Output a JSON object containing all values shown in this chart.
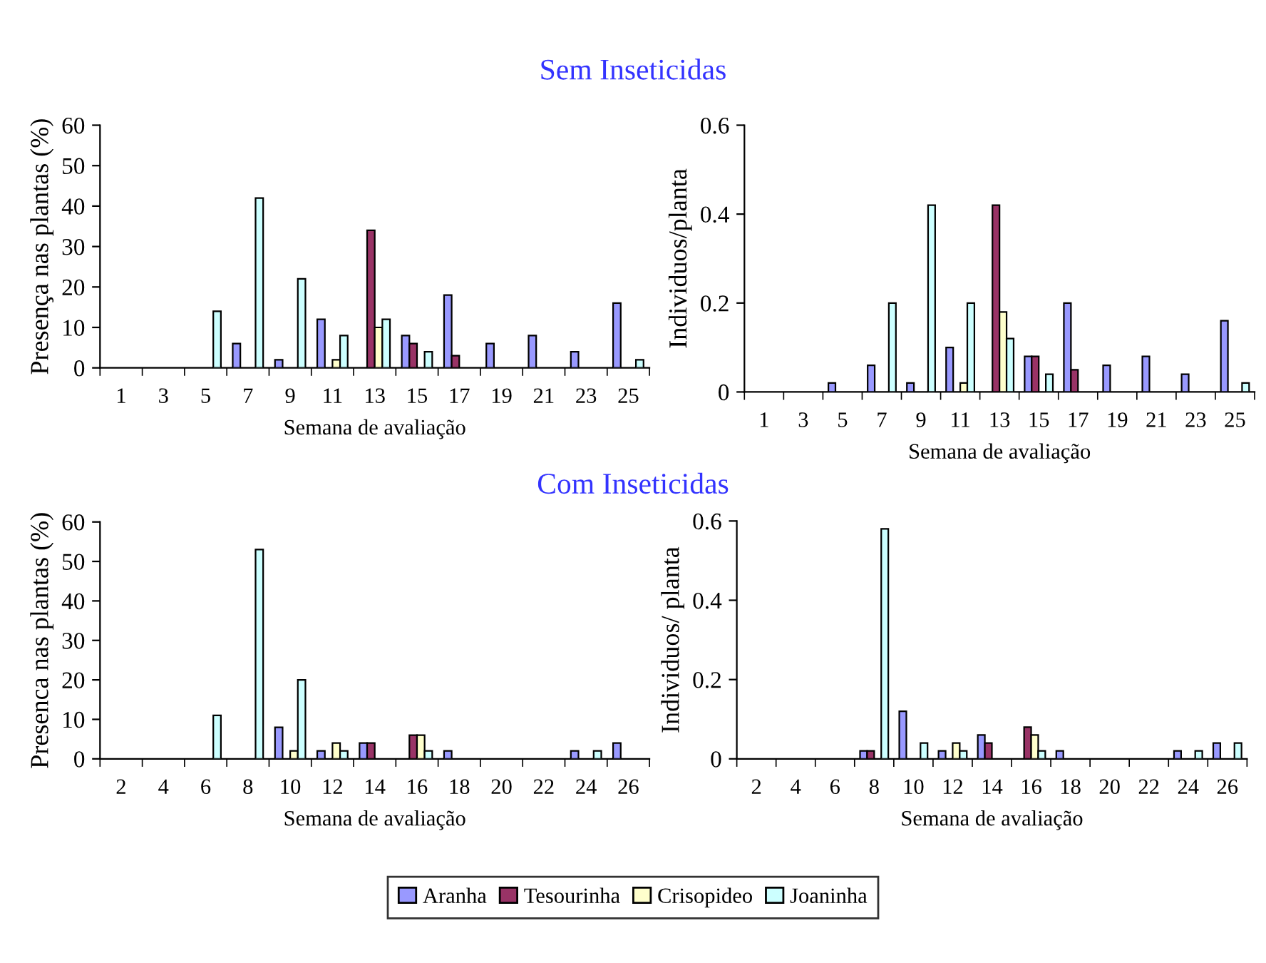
{
  "chart_data": [
    {
      "type": "bar",
      "title": "Sem Inseticidas",
      "xlabel": "Semana de avaliação",
      "ylabel": "Presença nas plantas (%)",
      "categories": [
        "1",
        "3",
        "5",
        "7",
        "9",
        "11",
        "13",
        "15",
        "17",
        "19",
        "21",
        "23",
        "25"
      ],
      "ylim": [
        0,
        60
      ],
      "yticks": [
        0,
        10,
        20,
        30,
        40,
        50,
        60
      ],
      "grid": false,
      "series": [
        {
          "color": "#9999ff",
          "values": [
            null,
            null,
            null,
            6,
            2,
            12,
            null,
            8,
            18,
            6,
            8,
            4,
            16
          ]
        },
        {
          "color": "#993366",
          "values": [
            null,
            null,
            null,
            null,
            null,
            null,
            34,
            6,
            3,
            null,
            null,
            null,
            null
          ]
        },
        {
          "color": "#ffffcc",
          "values": [
            null,
            null,
            null,
            null,
            null,
            2,
            10,
            null,
            null,
            null,
            null,
            null,
            null
          ]
        },
        {
          "color": "#ccffff",
          "values": [
            null,
            null,
            14,
            42,
            22,
            8,
            12,
            4,
            null,
            null,
            null,
            null,
            2
          ]
        }
      ]
    },
    {
      "type": "bar",
      "xlabel": "Semana de avaliação",
      "ylabel": "Individuos/planta",
      "categories": [
        "1",
        "3",
        "5",
        "7",
        "9",
        "11",
        "13",
        "15",
        "17",
        "19",
        "21",
        "23",
        "25"
      ],
      "ylim": [
        0,
        0.6
      ],
      "yticks": [
        {
          "value": 0,
          "label": "0"
        },
        {
          "value": 0.2,
          "label": "0.2"
        },
        {
          "value": 0.4,
          "label": "0.4"
        },
        {
          "value": 0.6,
          "label": "0.6"
        }
      ],
      "grid": false,
      "series": [
        {
          "color": "#9999ff",
          "values": [
            null,
            null,
            0.02,
            0.06,
            0.02,
            0.1,
            null,
            0.08,
            0.2,
            0.06,
            0.08,
            0.04,
            0.16
          ]
        },
        {
          "color": "#993366",
          "values": [
            null,
            null,
            null,
            null,
            null,
            null,
            0.42,
            0.08,
            0.05,
            null,
            null,
            null,
            null
          ]
        },
        {
          "color": "#ffffcc",
          "values": [
            null,
            null,
            null,
            null,
            null,
            0.02,
            0.18,
            null,
            null,
            null,
            null,
            null,
            null
          ]
        },
        {
          "color": "#ccffff",
          "values": [
            null,
            null,
            null,
            0.2,
            0.42,
            0.2,
            0.12,
            0.04,
            null,
            null,
            null,
            null,
            0.02
          ]
        }
      ]
    },
    {
      "type": "bar",
      "title": "Com Inseticidas",
      "xlabel": "Semana de avaliação",
      "ylabel": "Presenca nas plantas (%)",
      "categories": [
        "2",
        "4",
        "6",
        "8",
        "10",
        "12",
        "14",
        "16",
        "18",
        "20",
        "22",
        "24",
        "26"
      ],
      "ylim": [
        0,
        60
      ],
      "yticks": [
        0,
        10,
        20,
        30,
        40,
        50,
        60
      ],
      "grid": false,
      "series": [
        {
          "color": "#9999ff",
          "values": [
            null,
            null,
            null,
            null,
            8,
            2,
            4,
            null,
            2,
            null,
            null,
            2,
            4
          ]
        },
        {
          "color": "#993366",
          "values": [
            null,
            null,
            null,
            null,
            null,
            null,
            4,
            6,
            null,
            null,
            null,
            null,
            null
          ]
        },
        {
          "color": "#ffffcc",
          "values": [
            null,
            null,
            null,
            null,
            2,
            4,
            null,
            6,
            null,
            null,
            null,
            null,
            null
          ]
        },
        {
          "color": "#ccffff",
          "values": [
            null,
            null,
            11,
            53,
            20,
            2,
            null,
            2,
            null,
            null,
            null,
            2,
            null
          ]
        }
      ]
    },
    {
      "type": "bar",
      "xlabel": "Semana de avaliação",
      "ylabel": "Individuos/ planta",
      "categories": [
        "2",
        "4",
        "6",
        "8",
        "10",
        "12",
        "14",
        "16",
        "18",
        "20",
        "22",
        "24",
        "26"
      ],
      "ylim": [
        0,
        0.6
      ],
      "yticks": [
        {
          "value": 0,
          "label": "0"
        },
        {
          "value": 0.2,
          "label": "0.2"
        },
        {
          "value": 0.4,
          "label": "0.4"
        },
        {
          "value": 0.6,
          "label": "0.6"
        }
      ],
      "grid": false,
      "legend": "bottom",
      "series": [
        {
          "name": "Aranha",
          "color": "#9999ff",
          "values": [
            null,
            null,
            null,
            0.02,
            0.12,
            0.02,
            0.06,
            null,
            0.02,
            null,
            null,
            0.02,
            0.04
          ]
        },
        {
          "name": "Tesourinha",
          "color": "#993366",
          "values": [
            null,
            null,
            null,
            0.02,
            null,
            null,
            0.04,
            0.08,
            null,
            null,
            null,
            null,
            null
          ]
        },
        {
          "name": "Crisopideo",
          "color": "#ffffcc",
          "values": [
            null,
            null,
            null,
            null,
            null,
            0.04,
            null,
            0.06,
            null,
            null,
            null,
            null,
            null
          ]
        },
        {
          "name": "Joaninha",
          "color": "#ccffff",
          "values": [
            null,
            null,
            null,
            0.58,
            0.04,
            0.02,
            null,
            0.02,
            null,
            null,
            null,
            0.02,
            0.04
          ]
        }
      ]
    }
  ]
}
